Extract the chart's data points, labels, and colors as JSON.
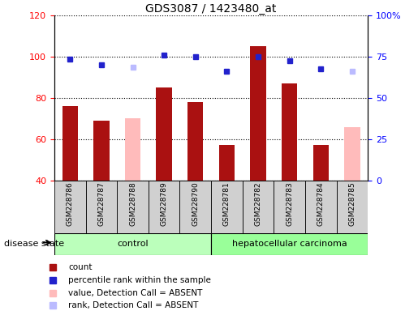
{
  "title": "GDS3087 / 1423480_at",
  "samples": [
    "GSM228786",
    "GSM228787",
    "GSM228788",
    "GSM228789",
    "GSM228790",
    "GSM228781",
    "GSM228782",
    "GSM228783",
    "GSM228784",
    "GSM228785"
  ],
  "count_values": [
    76,
    69,
    null,
    85,
    78,
    57,
    105,
    87,
    57,
    null
  ],
  "count_absent": [
    null,
    null,
    70,
    null,
    null,
    null,
    null,
    null,
    null,
    66
  ],
  "rank_values": [
    99,
    96,
    null,
    101,
    100,
    93,
    100,
    98,
    94,
    null
  ],
  "rank_absent": [
    null,
    null,
    95,
    null,
    null,
    null,
    null,
    null,
    null,
    93
  ],
  "ylim_left": [
    40,
    120
  ],
  "yticks_left": [
    40,
    60,
    80,
    100,
    120
  ],
  "ytick_labels_right": [
    "0",
    "25",
    "50",
    "75",
    "100%"
  ],
  "color_count": "#aa1111",
  "color_rank": "#2222cc",
  "color_count_absent": "#ffbbbb",
  "color_rank_absent": "#bbbbff",
  "legend_items": [
    {
      "label": "count",
      "color": "#aa1111"
    },
    {
      "label": "percentile rank within the sample",
      "color": "#2222cc"
    },
    {
      "label": "value, Detection Call = ABSENT",
      "color": "#ffbbbb"
    },
    {
      "label": "rank, Detection Call = ABSENT",
      "color": "#bbbbff"
    }
  ],
  "bar_width": 0.5,
  "disease_state_label": "disease state",
  "control_label": "control",
  "hcc_label": "hepatocellular carcinoma",
  "control_color": "#bbffbb",
  "hcc_color": "#99ff99"
}
